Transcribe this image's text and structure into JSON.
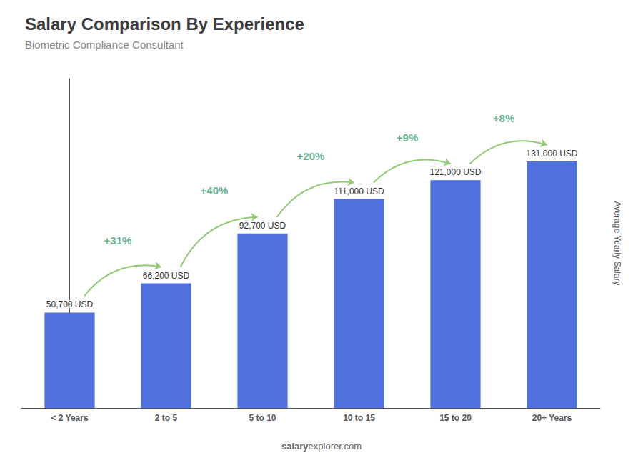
{
  "chart_data": {
    "type": "bar",
    "title": "Salary Comparison By Experience",
    "subtitle": "Biometric Compliance Consultant",
    "ylabel": "Average Yearly Salary",
    "watermark": [
      "salary",
      "explorer.com"
    ],
    "categories": [
      "< 2 Years",
      "2 to 5",
      "5 to 10",
      "10 to 15",
      "15 to 20",
      "20+ Years"
    ],
    "values": [
      50700,
      66200,
      92700,
      111000,
      121000,
      131000
    ],
    "value_labels": [
      "50,700 USD",
      "66,200 USD",
      "92,700 USD",
      "111,000 USD",
      "121,000 USD",
      "131,000 USD"
    ],
    "data_labels": true,
    "annotations": [
      {
        "text": "+31%",
        "from": "< 2 Years",
        "to": "2 to 5"
      },
      {
        "text": "+40%",
        "from": "2 to 5",
        "to": "5 to 10"
      },
      {
        "text": "+20%",
        "from": "5 to 10",
        "to": "10 to 15"
      },
      {
        "text": "+9%",
        "from": "10 to 15",
        "to": "15 to 20"
      },
      {
        "text": "+8%",
        "from": "15 to 20",
        "to": "20+ Years"
      }
    ],
    "ylim": [
      0,
      175000
    ],
    "tick_labels": "x",
    "grid": false
  }
}
